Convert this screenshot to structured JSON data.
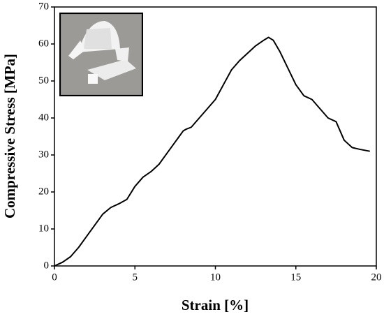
{
  "chart_data": {
    "type": "line",
    "x_label": "Strain [%]",
    "y_label": "Compressive Stress [MPa]",
    "xlim": [
      0,
      20
    ],
    "ylim": [
      0,
      70
    ],
    "xticks": [
      0,
      5,
      10,
      15,
      20
    ],
    "yticks": [
      0,
      10,
      20,
      30,
      40,
      50,
      60,
      70
    ],
    "x": [
      0,
      0.5,
      1,
      1.5,
      2,
      2.5,
      3,
      3.5,
      4,
      4.5,
      5,
      5.5,
      6,
      6.5,
      7,
      7.5,
      8,
      8.2,
      8.5,
      9,
      9.5,
      10,
      10.5,
      11,
      11.5,
      12,
      12.5,
      13,
      13.3,
      13.6,
      14,
      14.5,
      15,
      15.5,
      16,
      16.5,
      17,
      17.5,
      18,
      18.5,
      19,
      19.6
    ],
    "series": [
      {
        "color": "#000000",
        "values": [
          0,
          1,
          2.5,
          5,
          8,
          11,
          14,
          15.8,
          16.8,
          18,
          21.5,
          24,
          25.5,
          27.5,
          30.5,
          33.5,
          36.5,
          37,
          37.5,
          40,
          42.5,
          45,
          49,
          53,
          55.5,
          57.5,
          59.5,
          61,
          61.8,
          61,
          58,
          53.5,
          49,
          46,
          45,
          42.5,
          40,
          39,
          34,
          32,
          31.5,
          31
        ]
      }
    ]
  }
}
